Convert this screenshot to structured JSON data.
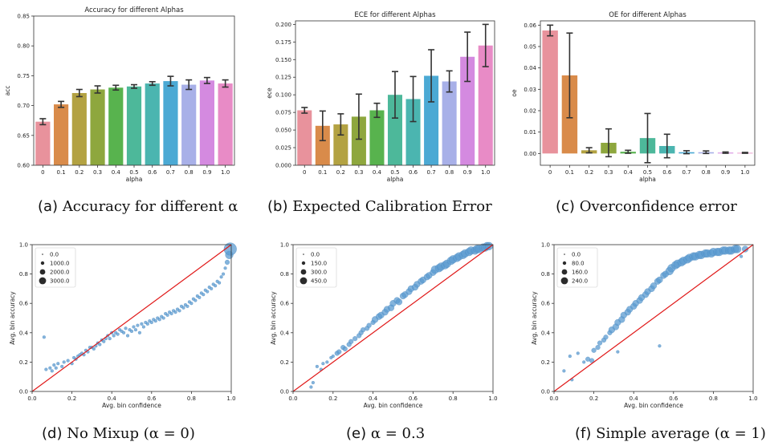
{
  "captions": {
    "a": {
      "tag": "(a)",
      "text": "Accuracy for different α"
    },
    "b": {
      "tag": "(b)",
      "text": "Expected Calibration Error"
    },
    "c": {
      "tag": "(c)",
      "text": "Overconfidence error"
    },
    "d": {
      "tag": "(d)",
      "text": "No Mixup (α = 0)"
    },
    "e": {
      "tag": "(e)",
      "text": "α = 0.3"
    },
    "f": {
      "tag": "(f)",
      "text": "Simple average (α = 1)"
    }
  },
  "chart_data": [
    {
      "id": "acc",
      "type": "bar",
      "title": "Accuracy for different Alphas",
      "xlabel": "alpha",
      "ylabel": "acc",
      "categories": [
        "0",
        "0.1",
        "0.2",
        "0.3",
        "0.4",
        "0.5",
        "0.6",
        "0.7",
        "0.8",
        "0.9",
        "1.0"
      ],
      "values": [
        0.673,
        0.702,
        0.721,
        0.727,
        0.73,
        0.732,
        0.737,
        0.741,
        0.735,
        0.742,
        0.737
      ],
      "errors": [
        0.005,
        0.005,
        0.006,
        0.006,
        0.004,
        0.003,
        0.003,
        0.008,
        0.008,
        0.005,
        0.006
      ],
      "ylim": [
        0.6,
        0.85
      ],
      "yticks": [
        "0.60",
        "0.65",
        "0.70",
        "0.75",
        "0.80",
        "0.85"
      ],
      "colors": [
        "#e8929c",
        "#d98b4a",
        "#b3a242",
        "#8ea73e",
        "#58b34e",
        "#4db89a",
        "#4bb5b0",
        "#4ba9d4",
        "#a8b0e8",
        "#d48ae0",
        "#e88bc6"
      ]
    },
    {
      "id": "ece",
      "type": "bar",
      "title": "ECE for different Alphas",
      "xlabel": "alpha",
      "ylabel": "ece",
      "categories": [
        "0",
        "0.1",
        "0.2",
        "0.3",
        "0.4",
        "0.5",
        "0.6",
        "0.7",
        "0.8",
        "0.9",
        "1.0"
      ],
      "values": [
        0.078,
        0.056,
        0.058,
        0.069,
        0.078,
        0.1,
        0.094,
        0.127,
        0.119,
        0.154,
        0.17
      ],
      "errors": [
        0.004,
        0.021,
        0.015,
        0.032,
        0.01,
        0.033,
        0.032,
        0.037,
        0.015,
        0.035,
        0.03
      ],
      "ylim": [
        0,
        0.205
      ],
      "yticks": [
        "0.000",
        "0.025",
        "0.050",
        "0.075",
        "0.100",
        "0.125",
        "0.150",
        "0.175",
        "0.200"
      ],
      "colors": [
        "#e8929c",
        "#d98b4a",
        "#b3a242",
        "#8ea73e",
        "#58b34e",
        "#4db89a",
        "#4bb5b0",
        "#4ba9d4",
        "#a8b0e8",
        "#d48ae0",
        "#e88bc6"
      ]
    },
    {
      "id": "oe",
      "type": "bar",
      "title": "OE for different Alphas",
      "xlabel": "alpha",
      "ylabel": "oe",
      "categories": [
        "0",
        "0.1",
        "0.2",
        "0.3",
        "0.4",
        "0.5",
        "0.6",
        "0.7",
        "0.8",
        "0.9",
        "1.0"
      ],
      "values": [
        0.0575,
        0.0365,
        0.0015,
        0.005,
        0.0008,
        0.0072,
        0.0035,
        0.0006,
        0.0006,
        0.0004,
        0.0003
      ],
      "errors": [
        0.0025,
        0.0198,
        0.0012,
        0.0065,
        0.0007,
        0.0115,
        0.0055,
        0.0007,
        0.0006,
        0.0003,
        0.0002
      ],
      "ylim": [
        -0.0055,
        0.062
      ],
      "yticks": [
        "0.00",
        "0.01",
        "0.02",
        "0.03",
        "0.04",
        "0.05",
        "0.06"
      ],
      "colors": [
        "#e8929c",
        "#d98b4a",
        "#b3a242",
        "#8ea73e",
        "#58b34e",
        "#4db89a",
        "#4bb5b0",
        "#4ba9d4",
        "#a8b0e8",
        "#d48ae0",
        "#e88bc6"
      ]
    },
    {
      "id": "rel0",
      "type": "scatter",
      "xlabel": "Avg. bin confidence",
      "ylabel": "Avg. bin accuracy",
      "xlim": [
        0,
        1
      ],
      "ylim": [
        0,
        1
      ],
      "xticks": [
        "0.0",
        "0.2",
        "0.4",
        "0.6",
        "0.8",
        "1.0"
      ],
      "yticks": [
        "0.0",
        "0.2",
        "0.4",
        "0.6",
        "0.8",
        "1.0"
      ],
      "legend": [
        "0.0",
        "1000.0",
        "2000.0",
        "3000.0"
      ],
      "diagonal": true,
      "points": [
        [
          0.06,
          0.37
        ],
        [
          0.07,
          0.15
        ],
        [
          0.09,
          0.16
        ],
        [
          0.1,
          0.14
        ],
        [
          0.11,
          0.18
        ],
        [
          0.12,
          0.16
        ],
        [
          0.13,
          0.19
        ],
        [
          0.15,
          0.17
        ],
        [
          0.16,
          0.2
        ],
        [
          0.18,
          0.21
        ],
        [
          0.2,
          0.19
        ],
        [
          0.21,
          0.23
        ],
        [
          0.22,
          0.22
        ],
        [
          0.23,
          0.24
        ],
        [
          0.24,
          0.25
        ],
        [
          0.25,
          0.26
        ],
        [
          0.26,
          0.25
        ],
        [
          0.27,
          0.28
        ],
        [
          0.28,
          0.27
        ],
        [
          0.29,
          0.3
        ],
        [
          0.3,
          0.3
        ],
        [
          0.31,
          0.29
        ],
        [
          0.32,
          0.31
        ],
        [
          0.33,
          0.33
        ],
        [
          0.34,
          0.32
        ],
        [
          0.35,
          0.35
        ],
        [
          0.36,
          0.34
        ],
        [
          0.37,
          0.36
        ],
        [
          0.38,
          0.38
        ],
        [
          0.39,
          0.36
        ],
        [
          0.4,
          0.4
        ],
        [
          0.41,
          0.38
        ],
        [
          0.42,
          0.4
        ],
        [
          0.43,
          0.39
        ],
        [
          0.44,
          0.42
        ],
        [
          0.45,
          0.41
        ],
        [
          0.46,
          0.4
        ],
        [
          0.47,
          0.43
        ],
        [
          0.48,
          0.38
        ],
        [
          0.49,
          0.42
        ],
        [
          0.5,
          0.41
        ],
        [
          0.51,
          0.44
        ],
        [
          0.52,
          0.42
        ],
        [
          0.53,
          0.45
        ],
        [
          0.54,
          0.4
        ],
        [
          0.55,
          0.46
        ],
        [
          0.56,
          0.44
        ],
        [
          0.57,
          0.47
        ],
        [
          0.58,
          0.46
        ],
        [
          0.59,
          0.48
        ],
        [
          0.6,
          0.47
        ],
        [
          0.61,
          0.49
        ],
        [
          0.62,
          0.48
        ],
        [
          0.63,
          0.5
        ],
        [
          0.64,
          0.49
        ],
        [
          0.65,
          0.51
        ],
        [
          0.66,
          0.5
        ],
        [
          0.67,
          0.53
        ],
        [
          0.68,
          0.52
        ],
        [
          0.69,
          0.54
        ],
        [
          0.7,
          0.53
        ],
        [
          0.71,
          0.55
        ],
        [
          0.72,
          0.54
        ],
        [
          0.73,
          0.56
        ],
        [
          0.74,
          0.55
        ],
        [
          0.75,
          0.58
        ],
        [
          0.76,
          0.57
        ],
        [
          0.77,
          0.59
        ],
        [
          0.78,
          0.58
        ],
        [
          0.79,
          0.61
        ],
        [
          0.8,
          0.6
        ],
        [
          0.81,
          0.63
        ],
        [
          0.82,
          0.62
        ],
        [
          0.83,
          0.65
        ],
        [
          0.84,
          0.64
        ],
        [
          0.85,
          0.67
        ],
        [
          0.86,
          0.66
        ],
        [
          0.87,
          0.69
        ],
        [
          0.88,
          0.68
        ],
        [
          0.89,
          0.71
        ],
        [
          0.9,
          0.7
        ],
        [
          0.91,
          0.73
        ],
        [
          0.92,
          0.72
        ],
        [
          0.93,
          0.75
        ],
        [
          0.94,
          0.74
        ],
        [
          0.95,
          0.78
        ],
        [
          0.96,
          0.8
        ],
        [
          0.97,
          0.84
        ],
        [
          0.98,
          0.88
        ],
        [
          0.99,
          0.93
        ],
        [
          0.995,
          0.97
        ]
      ],
      "sizes": [
        1,
        1,
        1,
        1,
        1,
        1,
        1,
        1,
        1,
        1,
        1,
        1,
        1,
        1,
        1,
        1,
        1,
        1,
        1,
        1,
        1,
        1,
        1,
        1,
        1,
        1,
        1,
        1,
        1,
        1,
        1,
        1,
        1,
        1,
        1,
        1,
        1,
        1,
        1,
        1,
        1,
        1,
        1,
        1,
        1,
        1,
        1,
        1,
        1,
        1,
        1,
        1,
        1,
        1,
        1,
        1,
        1,
        1,
        1,
        1,
        1,
        1,
        1,
        1,
        1,
        1,
        1,
        1,
        1,
        1,
        1,
        1,
        1,
        1,
        1,
        1,
        1,
        1,
        1,
        1,
        1,
        1,
        1,
        1,
        1,
        1,
        1,
        1,
        2,
        4,
        7
      ]
    },
    {
      "id": "rel03",
      "type": "scatter",
      "xlabel": "Avg. bin confidence",
      "ylabel": "Avg. bin accuracy",
      "xlim": [
        0,
        1
      ],
      "ylim": [
        0,
        1
      ],
      "xticks": [
        "0.0",
        "0.2",
        "0.4",
        "0.6",
        "0.8",
        "1.0"
      ],
      "yticks": [
        "0.0",
        "0.2",
        "0.4",
        "0.6",
        "0.8",
        "1.0"
      ],
      "legend": [
        "0.0",
        "150.0",
        "300.0",
        "450.0"
      ],
      "diagonal": true,
      "points": [
        [
          0.09,
          0.03
        ],
        [
          0.1,
          0.06
        ],
        [
          0.12,
          0.17
        ],
        [
          0.14,
          0.15
        ],
        [
          0.15,
          0.19
        ],
        [
          0.17,
          0.2
        ],
        [
          0.19,
          0.23
        ],
        [
          0.2,
          0.24
        ],
        [
          0.22,
          0.26
        ],
        [
          0.23,
          0.27
        ],
        [
          0.25,
          0.3
        ],
        [
          0.26,
          0.29
        ],
        [
          0.28,
          0.32
        ],
        [
          0.29,
          0.34
        ],
        [
          0.31,
          0.36
        ],
        [
          0.33,
          0.38
        ],
        [
          0.34,
          0.4
        ],
        [
          0.35,
          0.42
        ],
        [
          0.37,
          0.43
        ],
        [
          0.38,
          0.45
        ],
        [
          0.4,
          0.47
        ],
        [
          0.41,
          0.49
        ],
        [
          0.43,
          0.51
        ],
        [
          0.44,
          0.52
        ],
        [
          0.46,
          0.54
        ],
        [
          0.47,
          0.56
        ],
        [
          0.49,
          0.57
        ],
        [
          0.5,
          0.6
        ],
        [
          0.52,
          0.62
        ],
        [
          0.53,
          0.61
        ],
        [
          0.55,
          0.65
        ],
        [
          0.56,
          0.66
        ],
        [
          0.58,
          0.68
        ],
        [
          0.59,
          0.7
        ],
        [
          0.61,
          0.71
        ],
        [
          0.62,
          0.73
        ],
        [
          0.64,
          0.75
        ],
        [
          0.65,
          0.76
        ],
        [
          0.67,
          0.78
        ],
        [
          0.68,
          0.79
        ],
        [
          0.7,
          0.81
        ],
        [
          0.71,
          0.83
        ],
        [
          0.73,
          0.84
        ],
        [
          0.74,
          0.85
        ],
        [
          0.76,
          0.86
        ],
        [
          0.77,
          0.87
        ],
        [
          0.79,
          0.89
        ],
        [
          0.8,
          0.9
        ],
        [
          0.82,
          0.91
        ],
        [
          0.83,
          0.92
        ],
        [
          0.85,
          0.93
        ],
        [
          0.86,
          0.94
        ],
        [
          0.88,
          0.95
        ],
        [
          0.89,
          0.96
        ],
        [
          0.91,
          0.96
        ],
        [
          0.92,
          0.97
        ],
        [
          0.93,
          0.97
        ],
        [
          0.95,
          0.98
        ],
        [
          0.96,
          0.98
        ],
        [
          0.97,
          0.99
        ],
        [
          0.98,
          0.99
        ]
      ],
      "sizes": [
        1,
        1,
        1,
        1,
        1,
        1,
        1,
        1,
        2,
        2,
        2,
        2,
        2,
        2,
        2,
        2,
        2,
        2,
        2,
        2,
        2,
        3,
        3,
        3,
        3,
        3,
        3,
        3,
        3,
        3,
        3,
        3,
        3,
        3,
        3,
        3,
        3,
        3,
        3,
        3,
        3,
        4,
        4,
        4,
        4,
        4,
        4,
        4,
        4,
        4,
        4,
        4,
        4,
        4,
        4,
        4,
        4,
        4,
        4,
        4,
        4
      ]
    },
    {
      "id": "rel1",
      "type": "scatter",
      "xlabel": "Avg. bin confidence",
      "ylabel": "Avg. bin accuracy",
      "xlim": [
        0,
        1
      ],
      "ylim": [
        0,
        1
      ],
      "xticks": [
        "0.0",
        "0.2",
        "0.4",
        "0.6",
        "0.8",
        "1.0"
      ],
      "yticks": [
        "0.0",
        "0.2",
        "0.4",
        "0.6",
        "0.8",
        "1.0"
      ],
      "legend": [
        "0.0",
        "80.0",
        "160.0",
        "240.0"
      ],
      "diagonal": true,
      "points": [
        [
          0.05,
          0.14
        ],
        [
          0.08,
          0.24
        ],
        [
          0.09,
          0.08
        ],
        [
          0.12,
          0.26
        ],
        [
          0.15,
          0.2
        ],
        [
          0.17,
          0.22
        ],
        [
          0.19,
          0.21
        ],
        [
          0.2,
          0.28
        ],
        [
          0.22,
          0.3
        ],
        [
          0.23,
          0.33
        ],
        [
          0.25,
          0.35
        ],
        [
          0.26,
          0.37
        ],
        [
          0.28,
          0.4
        ],
        [
          0.29,
          0.42
        ],
        [
          0.31,
          0.44
        ],
        [
          0.32,
          0.47
        ],
        [
          0.34,
          0.49
        ],
        [
          0.35,
          0.52
        ],
        [
          0.37,
          0.54
        ],
        [
          0.38,
          0.56
        ],
        [
          0.4,
          0.58
        ],
        [
          0.41,
          0.6
        ],
        [
          0.43,
          0.62
        ],
        [
          0.44,
          0.64
        ],
        [
          0.46,
          0.66
        ],
        [
          0.47,
          0.68
        ],
        [
          0.49,
          0.7
        ],
        [
          0.5,
          0.72
        ],
        [
          0.52,
          0.75
        ],
        [
          0.53,
          0.76
        ],
        [
          0.55,
          0.79
        ],
        [
          0.56,
          0.8
        ],
        [
          0.58,
          0.82
        ],
        [
          0.59,
          0.84
        ],
        [
          0.61,
          0.86
        ],
        [
          0.62,
          0.87
        ],
        [
          0.64,
          0.88
        ],
        [
          0.65,
          0.89
        ],
        [
          0.67,
          0.9
        ],
        [
          0.68,
          0.91
        ],
        [
          0.7,
          0.92
        ],
        [
          0.71,
          0.92
        ],
        [
          0.73,
          0.93
        ],
        [
          0.74,
          0.93
        ],
        [
          0.76,
          0.94
        ],
        [
          0.77,
          0.94
        ],
        [
          0.79,
          0.94
        ],
        [
          0.8,
          0.95
        ],
        [
          0.82,
          0.95
        ],
        [
          0.83,
          0.95
        ],
        [
          0.85,
          0.96
        ],
        [
          0.86,
          0.96
        ],
        [
          0.88,
          0.96
        ],
        [
          0.89,
          0.96
        ],
        [
          0.91,
          0.97
        ],
        [
          0.92,
          0.97
        ],
        [
          0.94,
          0.92
        ],
        [
          0.96,
          0.97
        ],
        [
          0.53,
          0.31
        ],
        [
          0.32,
          0.27
        ]
      ],
      "sizes": [
        1,
        1,
        1,
        1,
        1,
        2,
        2,
        2,
        2,
        2,
        2,
        2,
        2,
        3,
        3,
        3,
        3,
        3,
        3,
        3,
        3,
        3,
        3,
        3,
        3,
        3,
        3,
        3,
        3,
        3,
        3,
        3,
        4,
        4,
        4,
        4,
        4,
        4,
        4,
        4,
        4,
        4,
        4,
        4,
        4,
        4,
        4,
        4,
        4,
        4,
        4,
        4,
        4,
        4,
        4,
        4,
        1,
        3,
        1,
        1
      ]
    }
  ]
}
